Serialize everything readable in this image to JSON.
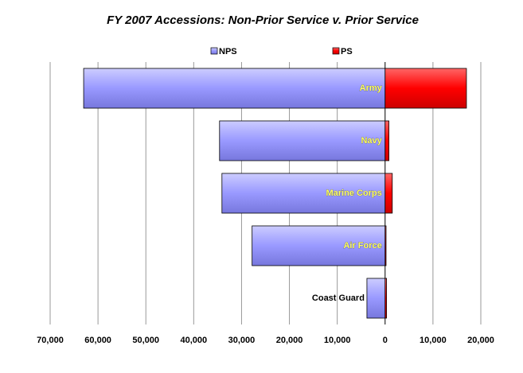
{
  "chart_data": {
    "type": "diverging_bar",
    "title": "FY 2007 Accessions: Non-Prior Service v. Prior Service",
    "categories": [
      "Army",
      "Navy",
      "Marine Corps",
      "Air Force",
      "Coast Guard"
    ],
    "series": [
      {
        "name": "NPS",
        "color": "#9999ff",
        "values": [
          -63000,
          -34600,
          -34100,
          -27800,
          -3800
        ]
      },
      {
        "name": "PS",
        "color": "#ff0000",
        "values": [
          17000,
          800,
          1500,
          200,
          300
        ]
      }
    ],
    "xlim": [
      -70000,
      20000
    ],
    "xticks": [
      {
        "value": -70000,
        "label": "70,000"
      },
      {
        "value": -60000,
        "label": "60,000"
      },
      {
        "value": -50000,
        "label": "50,000"
      },
      {
        "value": -40000,
        "label": "40,000"
      },
      {
        "value": -30000,
        "label": "30,000"
      },
      {
        "value": -20000,
        "label": "20,000"
      },
      {
        "value": -10000,
        "label": "10,000"
      },
      0,
      {
        "value": 10000,
        "label": "10,000"
      },
      {
        "value": 20000,
        "label": "20,000"
      }
    ],
    "grid": true,
    "legend": "top"
  }
}
